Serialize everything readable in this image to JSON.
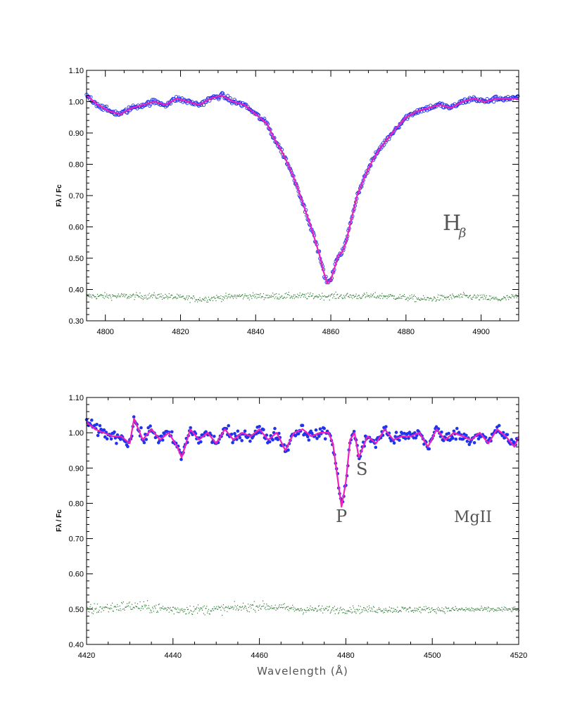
{
  "chart_data": [
    {
      "type": "line",
      "panel": "top",
      "title": "",
      "xlabel": "",
      "ylabel": "Fλ / Fc",
      "xlim": [
        4795,
        4910
      ],
      "ylim": [
        0.3,
        1.1
      ],
      "xticks": [
        4800,
        4820,
        4840,
        4860,
        4880,
        4900
      ],
      "xtick_labels": [
        "4800",
        "4820",
        "4840",
        "4860",
        "4880",
        "4900"
      ],
      "yticks": [
        0.3,
        0.4,
        0.5,
        0.6,
        0.7,
        0.8,
        0.9,
        1.0,
        1.1
      ],
      "ytick_labels": [
        "0.30",
        "0.40",
        "0.50",
        "0.60",
        "0.70",
        "0.80",
        "0.90",
        "1.00",
        "1.10"
      ],
      "grid": false,
      "annotations": [
        {
          "text": "H",
          "subscript": "β",
          "x": 4897,
          "y": 0.6
        }
      ],
      "series": [
        {
          "style": "open-circles",
          "color": "#2233ee",
          "x": [
            4795,
            4798,
            4801,
            4804,
            4807,
            4810,
            4813,
            4816,
            4819,
            4822,
            4825,
            4828,
            4831,
            4834,
            4837,
            4840,
            4843,
            4845,
            4847,
            4849,
            4851,
            4853,
            4855,
            4856,
            4857,
            4858,
            4859,
            4860,
            4861,
            4862,
            4863,
            4864,
            4865,
            4867,
            4869,
            4871,
            4873,
            4875,
            4877,
            4880,
            4883,
            4886,
            4889,
            4892,
            4895,
            4898,
            4901,
            4904,
            4907,
            4910
          ],
          "y": [
            1.02,
            0.99,
            0.97,
            0.96,
            0.98,
            0.99,
            1.0,
            0.99,
            1.01,
            1.0,
            0.99,
            1.01,
            1.02,
            1.0,
            0.99,
            0.96,
            0.93,
            0.88,
            0.84,
            0.79,
            0.73,
            0.66,
            0.59,
            0.55,
            0.51,
            0.46,
            0.42,
            0.43,
            0.47,
            0.51,
            0.52,
            0.55,
            0.6,
            0.7,
            0.76,
            0.81,
            0.85,
            0.88,
            0.91,
            0.95,
            0.97,
            0.98,
            0.99,
            0.98,
            1.0,
            1.01,
            1.0,
            1.01,
            1.01,
            1.01
          ]
        },
        {
          "style": "line",
          "color": "#ee22bb",
          "x": [
            4795,
            4798,
            4801,
            4804,
            4807,
            4810,
            4813,
            4816,
            4819,
            4822,
            4825,
            4828,
            4831,
            4834,
            4837,
            4840,
            4843,
            4845,
            4847,
            4849,
            4851,
            4853,
            4855,
            4856,
            4857,
            4858,
            4859,
            4860,
            4861,
            4862,
            4863,
            4864,
            4865,
            4867,
            4869,
            4871,
            4873,
            4875,
            4877,
            4880,
            4883,
            4886,
            4889,
            4892,
            4895,
            4898,
            4901,
            4904,
            4907,
            4910
          ],
          "y": [
            1.02,
            0.99,
            0.97,
            0.96,
            0.98,
            0.99,
            1.0,
            0.99,
            1.01,
            1.0,
            0.99,
            1.01,
            1.02,
            1.0,
            0.99,
            0.96,
            0.93,
            0.88,
            0.84,
            0.79,
            0.73,
            0.66,
            0.59,
            0.55,
            0.51,
            0.46,
            0.42,
            0.43,
            0.47,
            0.51,
            0.52,
            0.55,
            0.6,
            0.7,
            0.76,
            0.81,
            0.85,
            0.88,
            0.91,
            0.95,
            0.97,
            0.98,
            0.99,
            0.98,
            1.0,
            1.01,
            1.0,
            1.01,
            1.01,
            1.01
          ]
        },
        {
          "style": "dots",
          "color": "#2e7d32",
          "role": "residuals",
          "x": [
            4795,
            4805,
            4815,
            4825,
            4835,
            4845,
            4855,
            4865,
            4875,
            4885,
            4895,
            4905,
            4910
          ],
          "y": [
            0.38,
            0.38,
            0.38,
            0.37,
            0.38,
            0.38,
            0.38,
            0.38,
            0.38,
            0.37,
            0.38,
            0.37,
            0.38
          ]
        }
      ],
      "colors": {
        "observed": "#2233ee",
        "model": "#ee22bb",
        "residual": "#2e7d32",
        "annotation": "#555555"
      }
    },
    {
      "type": "line",
      "panel": "bottom",
      "title": "",
      "xlabel": "Wavelength (Å)",
      "ylabel": "Fλ / Fc",
      "xlim": [
        4420,
        4520
      ],
      "ylim": [
        0.4,
        1.1
      ],
      "xticks": [
        4420,
        4440,
        4460,
        4480,
        4500,
        4520
      ],
      "xtick_labels": [
        "4420",
        "4440",
        "4460",
        "4480",
        "4500",
        "4520"
      ],
      "yticks": [
        0.4,
        0.5,
        0.6,
        0.7,
        0.8,
        0.9,
        1.0,
        1.1
      ],
      "ytick_labels": [
        "0.40",
        "0.50",
        "0.60",
        "0.70",
        "0.80",
        "0.90",
        "1.00",
        "1.10"
      ],
      "grid": false,
      "annotations": [
        {
          "text": "P",
          "x": 4479,
          "y": 0.755
        },
        {
          "text": "S",
          "x": 4483,
          "y": 0.915
        },
        {
          "text": "MgII",
          "x": 4508,
          "y": 0.755
        }
      ],
      "series": [
        {
          "style": "filled-dots",
          "color": "#2233ee",
          "x": [
            4420,
            4422,
            4424,
            4426,
            4428,
            4430,
            4431,
            4433,
            4435,
            4437,
            4439,
            4441,
            4442,
            4444,
            4446,
            4448,
            4450,
            4452,
            4454,
            4456,
            4458,
            4460,
            4462,
            4464,
            4466,
            4468,
            4470,
            4472,
            4474,
            4476,
            4477,
            4478,
            4479,
            4480,
            4481,
            4482,
            4483,
            4485,
            4487,
            4489,
            4491,
            4493,
            4495,
            4497,
            4499,
            4501,
            4503,
            4505,
            4507,
            4509,
            4511,
            4513,
            4515,
            4517,
            4519,
            4520
          ],
          "y": [
            1.03,
            1.01,
            1.0,
            0.99,
            0.99,
            0.97,
            1.04,
            0.98,
            1.01,
            0.98,
            1.0,
            0.96,
            0.93,
            1.01,
            0.98,
            1.0,
            0.97,
            1.01,
            0.98,
            1.0,
            0.99,
            1.01,
            0.98,
            1.0,
            0.95,
            1.0,
            1.01,
            0.99,
            1.0,
            1.0,
            0.97,
            0.88,
            0.79,
            0.86,
            0.98,
            1.0,
            0.93,
            0.99,
            0.97,
            1.01,
            0.98,
            0.99,
            0.99,
            1.0,
            0.96,
            1.01,
            0.98,
            1.0,
            0.99,
            0.98,
            1.0,
            0.97,
            1.01,
            0.99,
            0.96,
            0.99
          ]
        },
        {
          "style": "line",
          "color": "#ee22bb",
          "x": [
            4420,
            4422,
            4424,
            4426,
            4428,
            4430,
            4431,
            4433,
            4435,
            4437,
            4439,
            4441,
            4442,
            4444,
            4446,
            4448,
            4450,
            4452,
            4454,
            4456,
            4458,
            4460,
            4462,
            4464,
            4466,
            4468,
            4470,
            4472,
            4474,
            4476,
            4477,
            4478,
            4479,
            4480,
            4481,
            4482,
            4483,
            4485,
            4487,
            4489,
            4491,
            4493,
            4495,
            4497,
            4499,
            4501,
            4503,
            4505,
            4507,
            4509,
            4511,
            4513,
            4515,
            4517,
            4519,
            4520
          ],
          "y": [
            1.03,
            1.01,
            1.0,
            0.99,
            0.99,
            0.97,
            1.04,
            0.98,
            1.01,
            0.98,
            1.0,
            0.96,
            0.93,
            1.01,
            0.98,
            1.0,
            0.97,
            1.01,
            0.98,
            1.0,
            0.99,
            1.01,
            0.98,
            1.0,
            0.95,
            1.0,
            1.01,
            0.99,
            1.0,
            1.0,
            0.97,
            0.88,
            0.79,
            0.86,
            0.98,
            1.0,
            0.93,
            0.99,
            0.97,
            1.01,
            0.98,
            0.99,
            0.99,
            1.0,
            0.96,
            1.01,
            0.98,
            1.0,
            0.99,
            0.98,
            1.0,
            0.97,
            1.01,
            0.99,
            0.96,
            0.99
          ]
        },
        {
          "style": "dots",
          "color": "#2e7d32",
          "role": "residuals",
          "x": [
            4420,
            4430,
            4440,
            4450,
            4460,
            4470,
            4480,
            4490,
            4500,
            4510,
            4520
          ],
          "y": [
            0.5,
            0.51,
            0.5,
            0.5,
            0.51,
            0.5,
            0.5,
            0.5,
            0.5,
            0.5,
            0.5
          ]
        }
      ],
      "colors": {
        "observed": "#2233ee",
        "model": "#ee22bb",
        "residual": "#2e7d32",
        "annotation": "#555555"
      }
    }
  ]
}
